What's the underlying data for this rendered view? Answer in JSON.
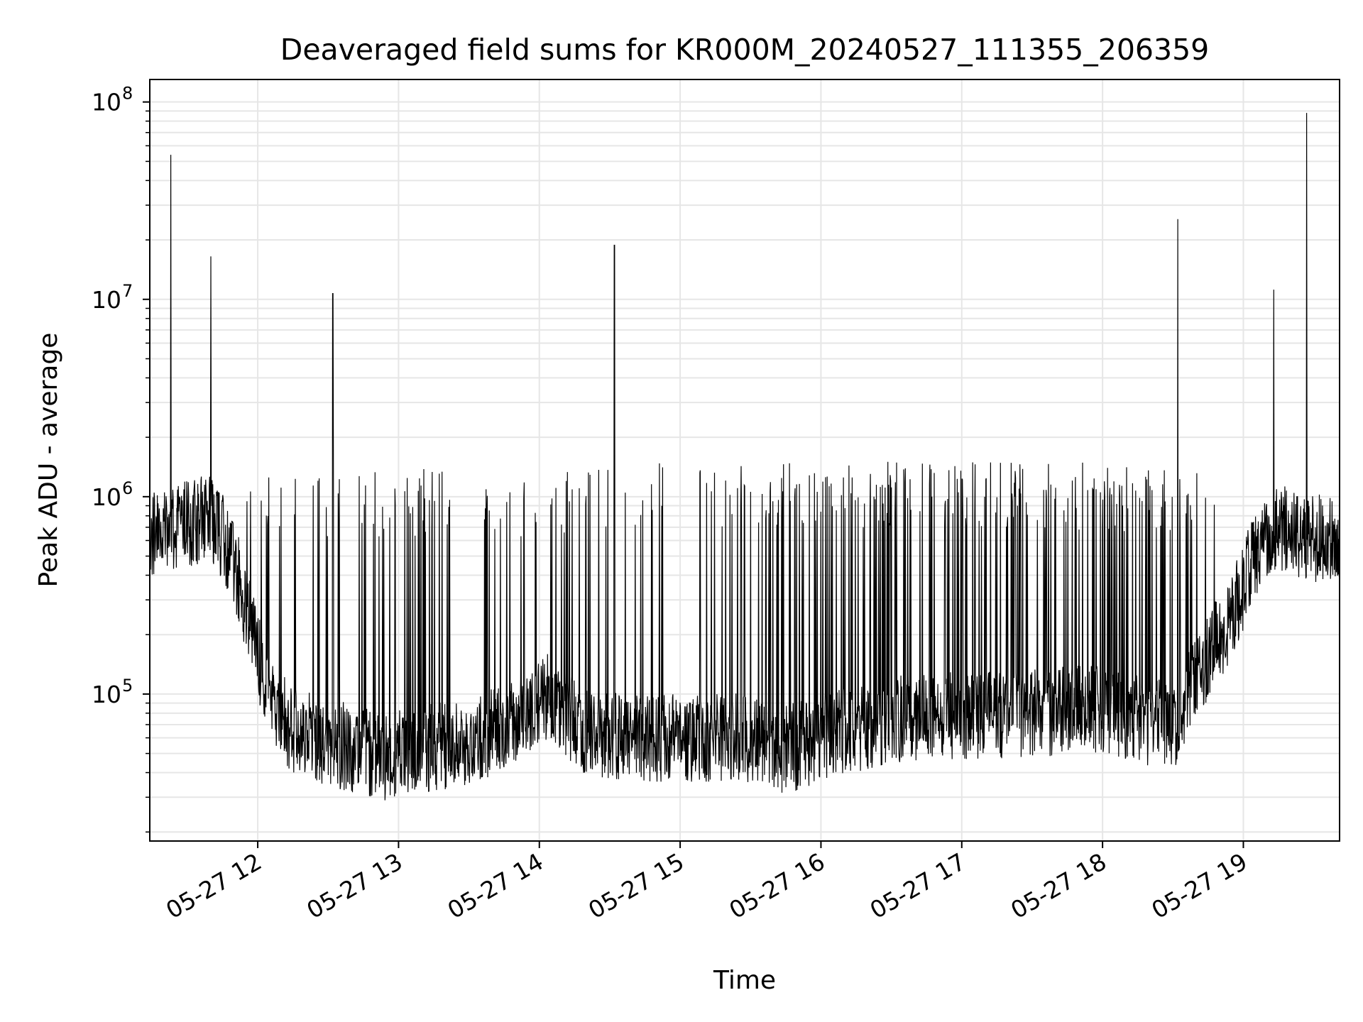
{
  "chart_data": {
    "type": "line",
    "title": "Deaveraged field sums for KR000M_20240527_111355_206359",
    "xlabel": "Time",
    "ylabel": "Peak ADU - average",
    "yscale": "log",
    "ylim": [
      18000,
      130000000
    ],
    "xlim": [
      "2024-05-27 11:14",
      "2024-05-27 19:41"
    ],
    "grid": true,
    "line_color": "#000000",
    "grid_color": "#e6e6e6",
    "x_ticks": [
      {
        "value": "2024-05-27 12:00",
        "label": "05-27 12"
      },
      {
        "value": "2024-05-27 13:00",
        "label": "05-27 13"
      },
      {
        "value": "2024-05-27 14:00",
        "label": "05-27 14"
      },
      {
        "value": "2024-05-27 15:00",
        "label": "05-27 15"
      },
      {
        "value": "2024-05-27 16:00",
        "label": "05-27 16"
      },
      {
        "value": "2024-05-27 17:00",
        "label": "05-27 17"
      },
      {
        "value": "2024-05-27 18:00",
        "label": "05-27 18"
      },
      {
        "value": "2024-05-27 19:00",
        "label": "05-27 19"
      }
    ],
    "y_ticks": [
      {
        "value": 100000,
        "base": "10",
        "exp": "5"
      },
      {
        "value": 1000000,
        "base": "10",
        "exp": "6"
      },
      {
        "value": 10000000,
        "base": "10",
        "exp": "7"
      },
      {
        "value": 100000000,
        "base": "10",
        "exp": "8"
      }
    ],
    "baseline": [
      [
        "2024-05-27 11:14",
        650000
      ],
      [
        "2024-05-27 11:25",
        700000
      ],
      [
        "2024-05-27 11:40",
        800000
      ],
      [
        "2024-05-27 11:47",
        550000
      ],
      [
        "2024-05-27 11:52",
        380000
      ],
      [
        "2024-05-27 11:56",
        250000
      ],
      [
        "2024-05-27 12:00",
        160000
      ],
      [
        "2024-05-27 12:05",
        100000
      ],
      [
        "2024-05-27 12:15",
        65000
      ],
      [
        "2024-05-27 12:35",
        55000
      ],
      [
        "2024-05-27 12:55",
        48000
      ],
      [
        "2024-05-27 13:20",
        55000
      ],
      [
        "2024-05-27 13:35",
        60000
      ],
      [
        "2024-05-27 13:50",
        75000
      ],
      [
        "2024-05-27 14:05",
        100000
      ],
      [
        "2024-05-27 14:12",
        80000
      ],
      [
        "2024-05-27 14:20",
        62000
      ],
      [
        "2024-05-27 14:50",
        60000
      ],
      [
        "2024-05-27 15:30",
        60000
      ],
      [
        "2024-05-27 15:45",
        52000
      ],
      [
        "2024-05-27 16:00",
        60000
      ],
      [
        "2024-05-27 16:30",
        75000
      ],
      [
        "2024-05-27 17:00",
        78000
      ],
      [
        "2024-05-27 17:30",
        80000
      ],
      [
        "2024-05-27 18:00",
        85000
      ],
      [
        "2024-05-27 18:15",
        75000
      ],
      [
        "2024-05-27 18:30",
        68000
      ],
      [
        "2024-05-27 18:40",
        120000
      ],
      [
        "2024-05-27 18:55",
        250000
      ],
      [
        "2024-05-27 19:05",
        500000
      ],
      [
        "2024-05-27 19:15",
        700000
      ],
      [
        "2024-05-27 19:30",
        600000
      ],
      [
        "2024-05-27 19:41",
        650000
      ]
    ],
    "spikes": [
      [
        "2024-05-27 11:23",
        54000000
      ],
      [
        "2024-05-27 11:40",
        16500000
      ],
      [
        "2024-05-27 12:32",
        10700000
      ],
      [
        "2024-05-27 14:32",
        18800000
      ],
      [
        "2024-05-27 18:32",
        25500000
      ],
      [
        "2024-05-27 19:13",
        11200000
      ],
      [
        "2024-05-27 19:27",
        88000000
      ]
    ],
    "burst_envelope": [
      [
        "2024-05-27 11:55",
        1300000
      ],
      [
        "2024-05-27 13:15",
        1400000
      ],
      [
        "2024-05-27 13:35",
        1200000
      ],
      [
        "2024-05-27 14:20",
        1500000
      ],
      [
        "2024-05-27 15:00",
        1500000
      ],
      [
        "2024-05-27 16:00",
        1550000
      ],
      [
        "2024-05-27 17:00",
        1550000
      ],
      [
        "2024-05-27 18:00",
        1500000
      ],
      [
        "2024-05-27 18:50",
        1300000
      ]
    ]
  }
}
